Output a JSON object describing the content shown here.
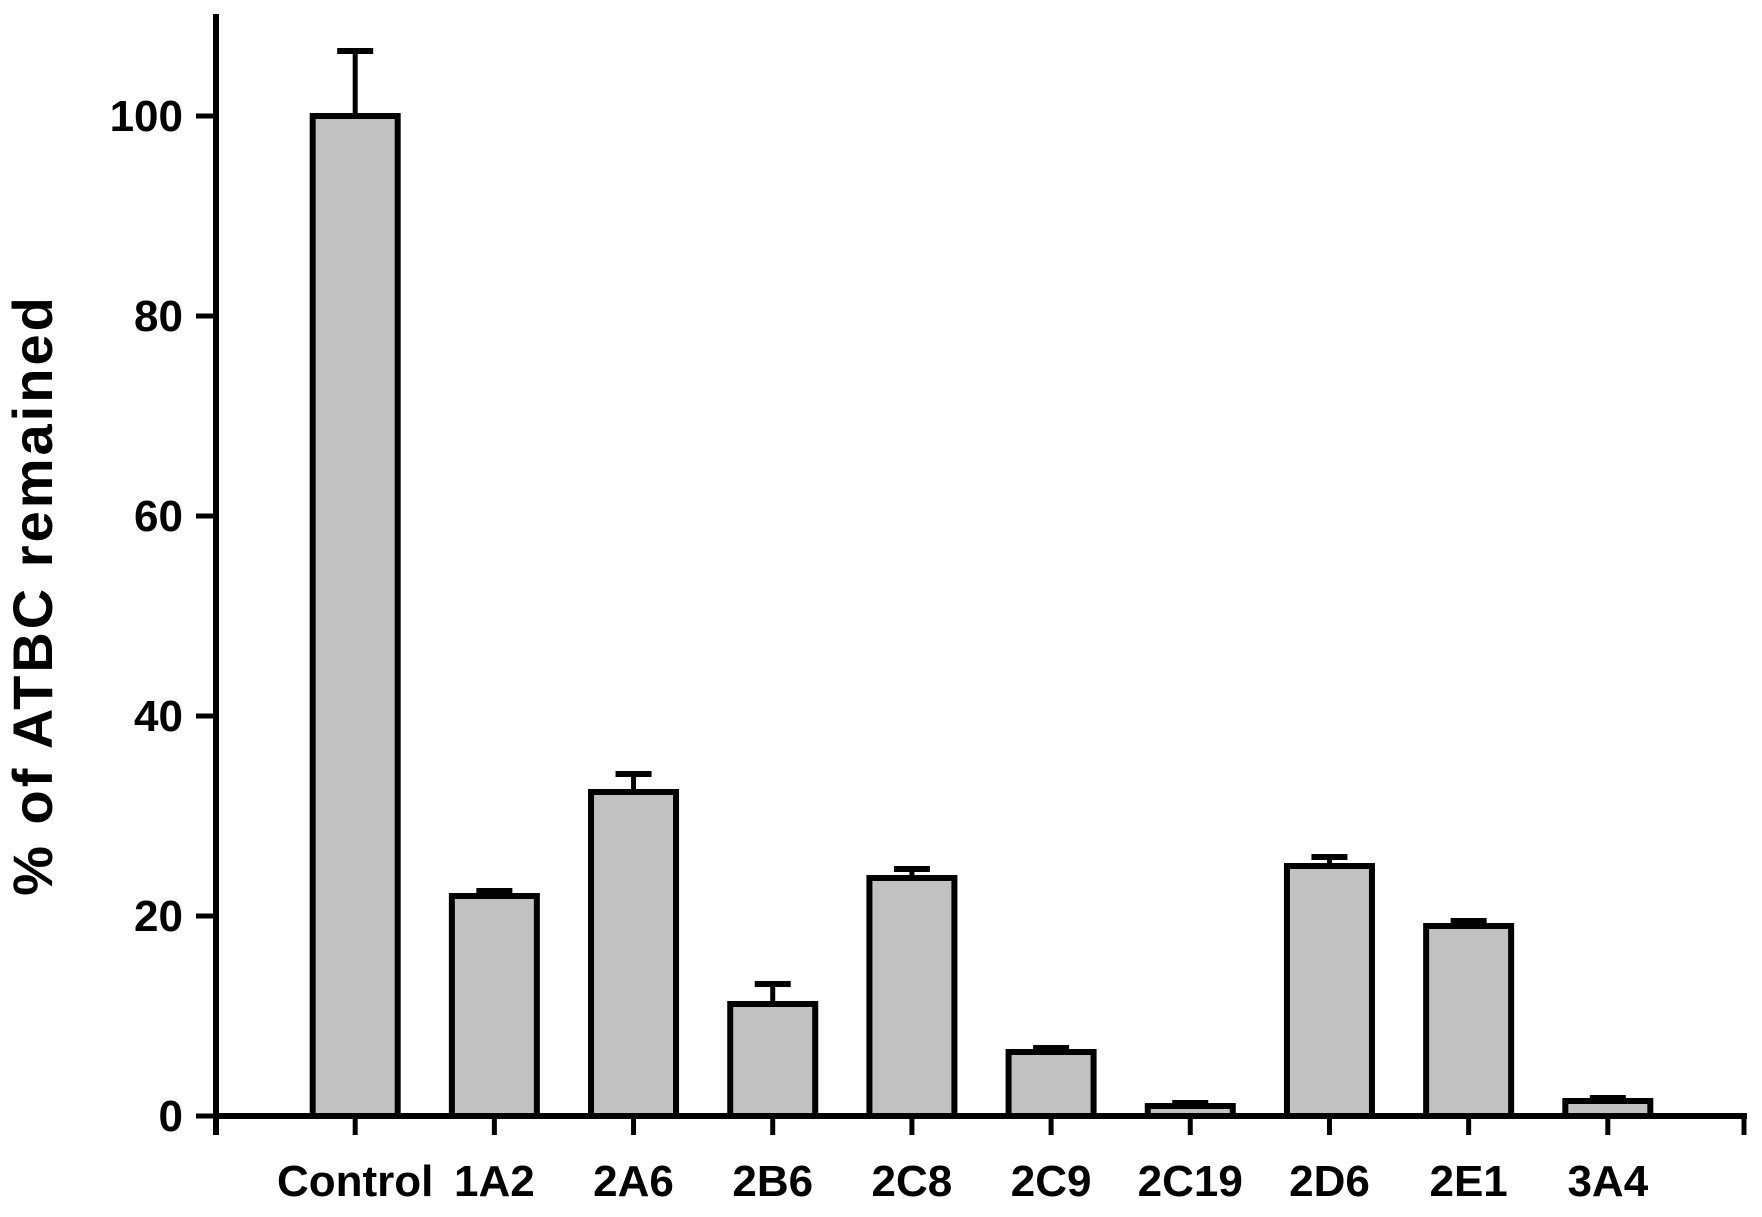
{
  "figure": {
    "background_color": "#ffffff",
    "text_color": "#000000"
  },
  "chart_data": {
    "type": "bar",
    "title": "",
    "xlabel": "",
    "ylabel": "% of ATBC remained",
    "categories": [
      "Control",
      "1A2",
      "2A6",
      "2B6",
      "2C8",
      "2C9",
      "2C19",
      "2D6",
      "2E1",
      "3A4"
    ],
    "values": [
      100,
      22,
      32.4,
      11.2,
      23.8,
      6.4,
      1,
      25,
      19,
      1.5
    ],
    "errors_plus": [
      6.5,
      0.5,
      1.8,
      2.0,
      0.9,
      0.4,
      0.3,
      0.9,
      0.5,
      0.3
    ],
    "y_ticks": [
      0,
      20,
      40,
      60,
      80,
      100
    ],
    "ylim": [
      0,
      110
    ],
    "grid": false,
    "legend": null,
    "bar_color": "#c1c1c1",
    "bar_border_color": "#000000",
    "error_bar_color": "#000000",
    "axis_color": "#000000"
  }
}
